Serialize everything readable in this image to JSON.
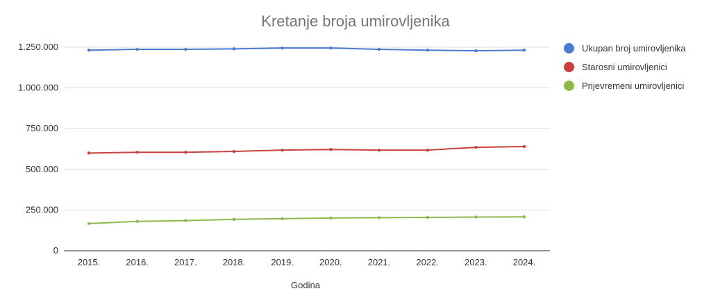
{
  "chart_data": {
    "type": "line",
    "title": "Kretanje broja umirovljenika",
    "xlabel": "Godina",
    "ylabel": "",
    "categories": [
      "2015.",
      "2016.",
      "2017.",
      "2018.",
      "2019.",
      "2020.",
      "2021.",
      "2022.",
      "2023.",
      "2024."
    ],
    "yticks": [
      0,
      250000,
      500000,
      750000,
      1000000,
      1250000
    ],
    "ytick_labels": [
      "0",
      "250.000",
      "500.000",
      "750.000",
      "1.000.000",
      "1.250.000"
    ],
    "ylim": [
      0,
      1300000
    ],
    "grid": true,
    "legend_position": "right",
    "series": [
      {
        "name": "Ukupan broj umirovljenika",
        "color": "#4a7bd0",
        "values": [
          1232000,
          1237000,
          1237000,
          1240000,
          1245000,
          1245000,
          1237000,
          1232000,
          1228000,
          1232000
        ]
      },
      {
        "name": "Starosni umirovljenici",
        "color": "#c9413f",
        "values": [
          600000,
          605000,
          605000,
          610000,
          618000,
          622000,
          618000,
          618000,
          635000,
          640000
        ]
      },
      {
        "name": "Prijevremeni umirovljenici",
        "color": "#8db84a",
        "values": [
          167000,
          180000,
          185000,
          193000,
          197000,
          201000,
          203000,
          205000,
          207000,
          208000
        ]
      }
    ]
  }
}
